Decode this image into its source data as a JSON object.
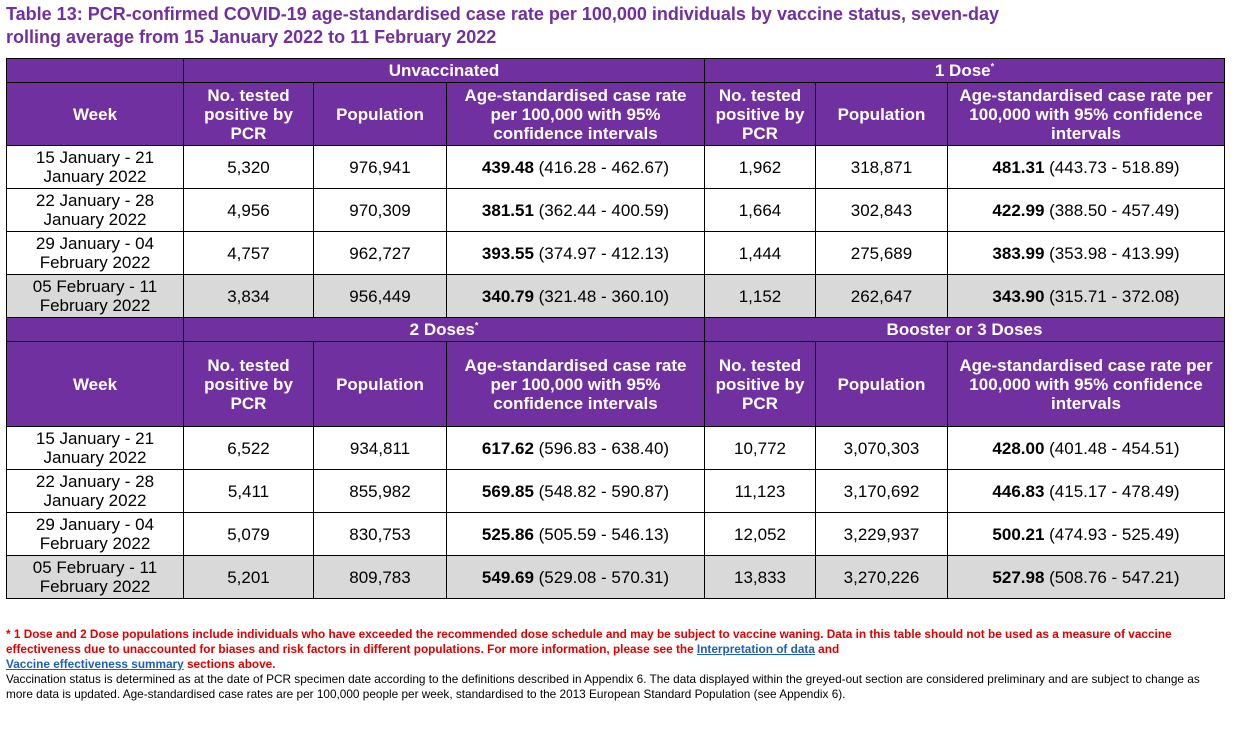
{
  "title_line1": "Table 13: PCR-confirmed COVID-19 age-standardised case rate per 100,000 individuals by vaccine status, seven-day",
  "title_line2": "rolling average from 15 January 2022 to 11 February 2022",
  "week_header": "Week",
  "col_tested": "No. tested positive by PCR",
  "col_population": "Population",
  "col_rate": "Age-standardised case rate per 100,000 with 95% confidence intervals",
  "sections": [
    {
      "left_group": "Unvaccinated",
      "right_group": "1 Dose",
      "right_sup": "*",
      "left_sup": "",
      "rows": [
        {
          "week": "15 January - 21 January 2022",
          "l_tested": "5,320",
          "l_pop": "976,941",
          "l_rate": "439.48",
          "l_ci": " (416.28 - 462.67)",
          "r_tested": "1,962",
          "r_pop": "318,871",
          "r_rate": "481.31",
          "r_ci": " (443.73 - 518.89)"
        },
        {
          "week": "22 January - 28 January 2022",
          "l_tested": "4,956",
          "l_pop": "970,309",
          "l_rate": "381.51",
          "l_ci": " (362.44 - 400.59)",
          "r_tested": "1,664",
          "r_pop": "302,843",
          "r_rate": "422.99",
          "r_ci": " (388.50 - 457.49)"
        },
        {
          "week": "29 January - 04 February 2022",
          "l_tested": "4,757",
          "l_pop": "962,727",
          "l_rate": "393.55",
          "l_ci": " (374.97 - 412.13)",
          "r_tested": "1,444",
          "r_pop": "275,689",
          "r_rate": "383.99",
          "r_ci": " (353.98 - 413.99)"
        },
        {
          "week": "05 February - 11 February 2022",
          "l_tested": "3,834",
          "l_pop": "956,449",
          "l_rate": "340.79",
          "l_ci": " (321.48 - 360.10)",
          "r_tested": "1,152",
          "r_pop": "262,647",
          "r_rate": "343.90",
          "r_ci": " (315.71 - 372.08)"
        }
      ]
    },
    {
      "left_group": "2 Doses",
      "left_sup": "*",
      "right_group": "Booster or 3 Doses",
      "right_sup": "",
      "rows": [
        {
          "week": "15 January - 21 January 2022",
          "l_tested": "6,522",
          "l_pop": "934,811",
          "l_rate": "617.62",
          "l_ci": " (596.83 - 638.40)",
          "r_tested": "10,772",
          "r_pop": "3,070,303",
          "r_rate": "428.00",
          "r_ci": " (401.48 - 454.51)"
        },
        {
          "week": "22 January - 28 January 2022",
          "l_tested": "5,411",
          "l_pop": "855,982",
          "l_rate": "569.85",
          "l_ci": " (548.82 - 590.87)",
          "r_tested": "11,123",
          "r_pop": "3,170,692",
          "r_rate": "446.83",
          "r_ci": " (415.17 - 478.49)"
        },
        {
          "week": "29 January - 04 February 2022",
          "l_tested": "5,079",
          "l_pop": "830,753",
          "l_rate": "525.86",
          "l_ci": " (505.59 - 546.13)",
          "r_tested": "12,052",
          "r_pop": "3,229,937",
          "r_rate": "500.21",
          "r_ci": " (474.93 - 525.49)"
        },
        {
          "week": "05 February - 11 February 2022",
          "l_tested": "5,201",
          "l_pop": "809,783",
          "l_rate": "549.69",
          "l_ci": " (529.08 - 570.31)",
          "r_tested": "13,833",
          "r_pop": "3,270,226",
          "r_rate": "527.98",
          "r_ci": " (508.76 - 547.21)"
        }
      ]
    }
  ],
  "footnote_red": "* 1 Dose and 2 Dose populations include individuals who have exceeded the recommended dose schedule and may be subject to vaccine waning. Data in this table should not be used as a measure of vaccine effectiveness due to unaccounted for biases and risk factors in different populations. For more information, please see the ",
  "link1": "Interpretation of data",
  "and_text": " and ",
  "link2": "Vaccine effectiveness summary",
  "sections_above": " sections above.",
  "footnote_black": "Vaccination status is determined as at the date of PCR specimen date according to the definitions described in Appendix 6. The data displayed within the greyed-out section are considered preliminary and are subject to change as more data is updated. Age-standardised case rates are per 100,000 people per week, standardised to the 2013 European Standard Population (see Appendix 6).",
  "colors": {
    "header_bg": "#7030a0",
    "grey_row": "#d9d9d9",
    "footnote_red": "#e00000",
    "link": "#1f5fb8"
  }
}
